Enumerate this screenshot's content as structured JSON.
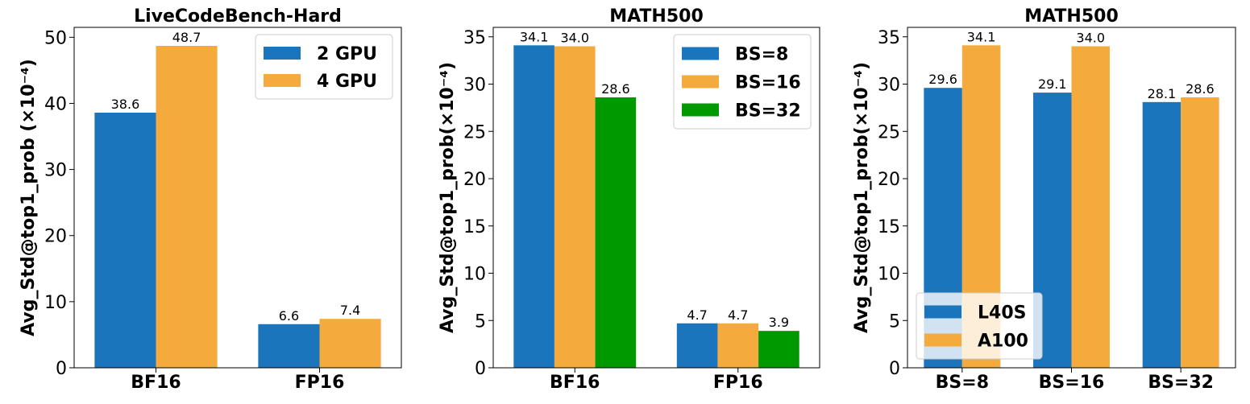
{
  "chart_data": [
    {
      "type": "bar",
      "title": "LiveCodeBench-Hard",
      "ylabel": "Avg_Std@top1_prob (×10⁻⁴)",
      "ylim": [
        0,
        51.5
      ],
      "yticks": [
        0,
        10,
        20,
        30,
        40,
        50
      ],
      "categories": [
        "BF16",
        "FP16"
      ],
      "series": [
        {
          "name": "2 GPU",
          "values": [
            38.6,
            6.6
          ],
          "labels": [
            "38.6",
            "6.6"
          ],
          "color": "#1a75bc"
        },
        {
          "name": "4 GPU",
          "values": [
            48.7,
            7.4
          ],
          "labels": [
            "48.7",
            "7.4"
          ],
          "color": "#f4aa3c"
        }
      ],
      "legend": "top-right",
      "grid": false
    },
    {
      "type": "bar",
      "title": "MATH500",
      "ylabel": "Avg_Std@top1_prob(×10⁻⁴)",
      "ylim": [
        0,
        36
      ],
      "yticks": [
        0,
        5,
        10,
        15,
        20,
        25,
        30,
        35
      ],
      "categories": [
        "BF16",
        "FP16"
      ],
      "series": [
        {
          "name": "BS=8",
          "values": [
            34.1,
            4.7
          ],
          "labels": [
            "34.1",
            "4.7"
          ],
          "color": "#1a75bc"
        },
        {
          "name": "BS=16",
          "values": [
            34.0,
            4.7
          ],
          "labels": [
            "34.0",
            "4.7"
          ],
          "color": "#f4aa3c"
        },
        {
          "name": "BS=32",
          "values": [
            28.6,
            3.9
          ],
          "labels": [
            "28.6",
            "3.9"
          ],
          "color": "#009900"
        }
      ],
      "legend": "top-right",
      "grid": false
    },
    {
      "type": "bar",
      "title": "MATH500",
      "ylabel": "Avg_Std@top1_prob(×10⁻⁴)",
      "ylim": [
        0,
        36
      ],
      "yticks": [
        0,
        5,
        10,
        15,
        20,
        25,
        30,
        35
      ],
      "categories": [
        "BS=8",
        "BS=16",
        "BS=32"
      ],
      "series": [
        {
          "name": "L40S",
          "values": [
            29.6,
            29.1,
            28.1
          ],
          "labels": [
            "29.6",
            "29.1",
            "28.1"
          ],
          "color": "#1a75bc"
        },
        {
          "name": "A100",
          "values": [
            34.1,
            34.0,
            28.6
          ],
          "labels": [
            "34.1",
            "34.0",
            "28.6"
          ],
          "color": "#f4aa3c"
        }
      ],
      "legend": "bottom-left",
      "grid": false
    }
  ]
}
